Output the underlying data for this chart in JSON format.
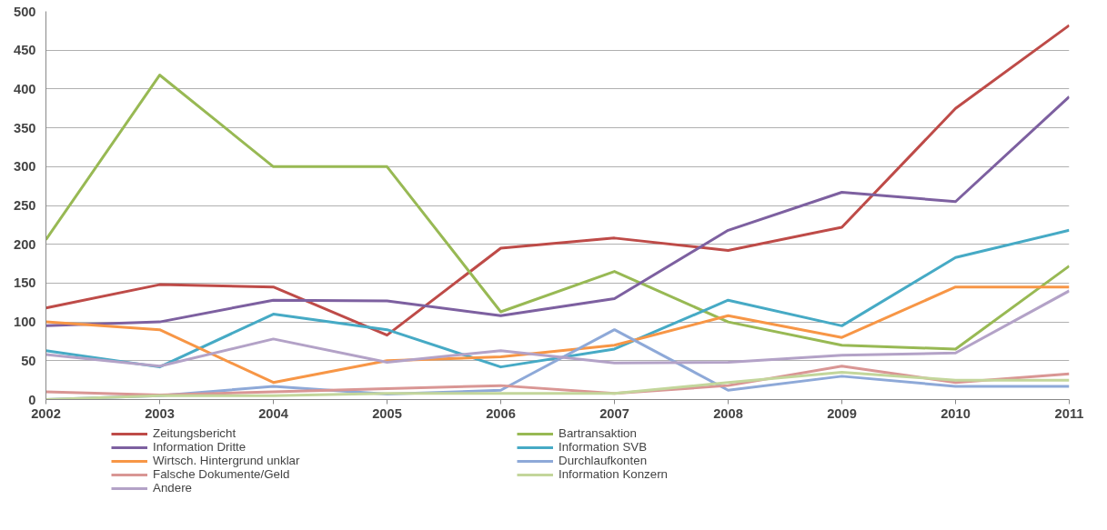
{
  "chart_data": {
    "type": "line",
    "x": [
      2002,
      2003,
      2004,
      2005,
      2006,
      2007,
      2008,
      2009,
      2010,
      2011
    ],
    "xlim": [
      2002,
      2011
    ],
    "xticks": [
      2002,
      2003,
      2004,
      2005,
      2006,
      2007,
      2008,
      2009,
      2010,
      2011
    ],
    "ylim": [
      0,
      500
    ],
    "yticks": [
      0,
      50,
      100,
      150,
      200,
      250,
      300,
      350,
      400,
      450,
      500
    ],
    "grid": "y",
    "legend": "bottom",
    "marker": "none",
    "line_style": "solid",
    "series": [
      {
        "name": "Zeitungsbericht",
        "color": "#be4b48",
        "values": [
          118,
          148,
          145,
          83,
          195,
          208,
          192,
          222,
          375,
          482
        ]
      },
      {
        "name": "Bartransaktion",
        "color": "#98b954",
        "values": [
          206,
          418,
          300,
          300,
          113,
          165,
          100,
          70,
          65,
          172
        ]
      },
      {
        "name": "Information Dritte",
        "color": "#7d60a0",
        "values": [
          95,
          100,
          128,
          127,
          108,
          130,
          218,
          267,
          255,
          390
        ]
      },
      {
        "name": "Information SVB",
        "color": "#46aac5",
        "values": [
          63,
          42,
          110,
          90,
          42,
          65,
          128,
          95,
          183,
          218
        ]
      },
      {
        "name": "Wirtsch. Hintergrund unklar",
        "color": "#f79646",
        "values": [
          100,
          90,
          22,
          50,
          55,
          70,
          108,
          80,
          145,
          145
        ]
      },
      {
        "name": "Durchlaufkonten",
        "color": "#8ea9d8",
        "values": [
          0,
          5,
          17,
          7,
          12,
          90,
          12,
          30,
          17,
          17
        ]
      },
      {
        "name": "Falsche Dokumente/Geld",
        "color": "#d99694",
        "values": [
          10,
          6,
          10,
          14,
          18,
          8,
          18,
          43,
          22,
          33
        ]
      },
      {
        "name": "Information Konzern",
        "color": "#c3d69b",
        "values": [
          0,
          5,
          5,
          8,
          8,
          8,
          22,
          35,
          25,
          25
        ]
      },
      {
        "name": "Andere",
        "color": "#b3a2c7",
        "values": [
          58,
          43,
          78,
          48,
          63,
          47,
          48,
          57,
          60,
          140
        ]
      }
    ]
  }
}
